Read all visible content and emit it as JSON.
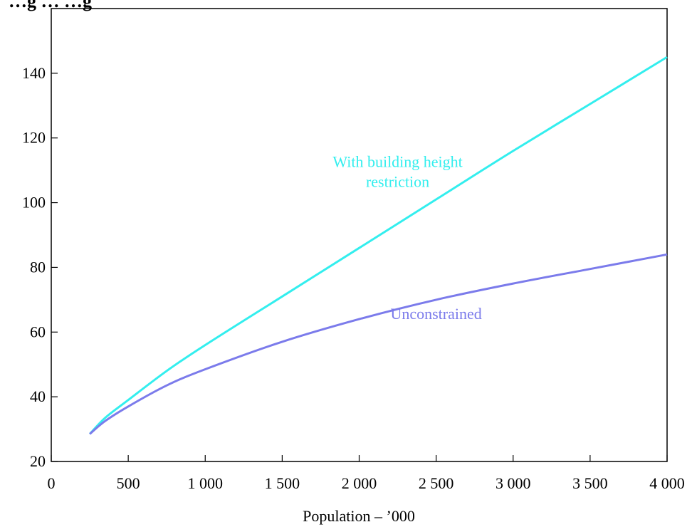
{
  "chart_data": {
    "type": "line",
    "title": "…g … …g",
    "xlabel": "Population – ’000",
    "ylabel": "",
    "xlim": [
      0,
      4000
    ],
    "ylim": [
      20,
      160
    ],
    "x_ticks": [
      {
        "value": 0,
        "label": "0"
      },
      {
        "value": 500,
        "label": "500"
      },
      {
        "value": 1000,
        "label": "1 000"
      },
      {
        "value": 1500,
        "label": "1 500"
      },
      {
        "value": 2000,
        "label": "2 000"
      },
      {
        "value": 2500,
        "label": "2 500"
      },
      {
        "value": 3000,
        "label": "3 000"
      },
      {
        "value": 3500,
        "label": "3 500"
      },
      {
        "value": 4000,
        "label": "4 000"
      }
    ],
    "y_ticks": [
      {
        "value": 20,
        "label": "20"
      },
      {
        "value": 40,
        "label": "40"
      },
      {
        "value": 60,
        "label": "60"
      },
      {
        "value": 80,
        "label": "80"
      },
      {
        "value": 100,
        "label": "100"
      },
      {
        "value": 120,
        "label": "120"
      },
      {
        "value": 140,
        "label": "140"
      }
    ],
    "grid": false,
    "series": [
      {
        "name": "With building height restriction",
        "label_lines": [
          "With building height",
          "restriction"
        ],
        "label_anchor": {
          "x": 2250,
          "y": 111
        },
        "color": "#33EEEE",
        "x": [
          250,
          350,
          500,
          750,
          1000,
          1500,
          2000,
          2500,
          3000,
          3500,
          4000
        ],
        "y": [
          28.5,
          33.5,
          39,
          48,
          56,
          71,
          86,
          101,
          116,
          130.5,
          145
        ]
      },
      {
        "name": "Unconstrained",
        "label_lines": [
          "Unconstrained"
        ],
        "label_anchor": {
          "x": 2500,
          "y": 64
        },
        "color": "#7B7BEB",
        "x": [
          250,
          350,
          500,
          750,
          1000,
          1500,
          2000,
          2500,
          3000,
          3500,
          4000
        ],
        "y": [
          28.5,
          32.5,
          37,
          43.5,
          48.5,
          57,
          64,
          70,
          75,
          79.5,
          84
        ]
      }
    ]
  }
}
